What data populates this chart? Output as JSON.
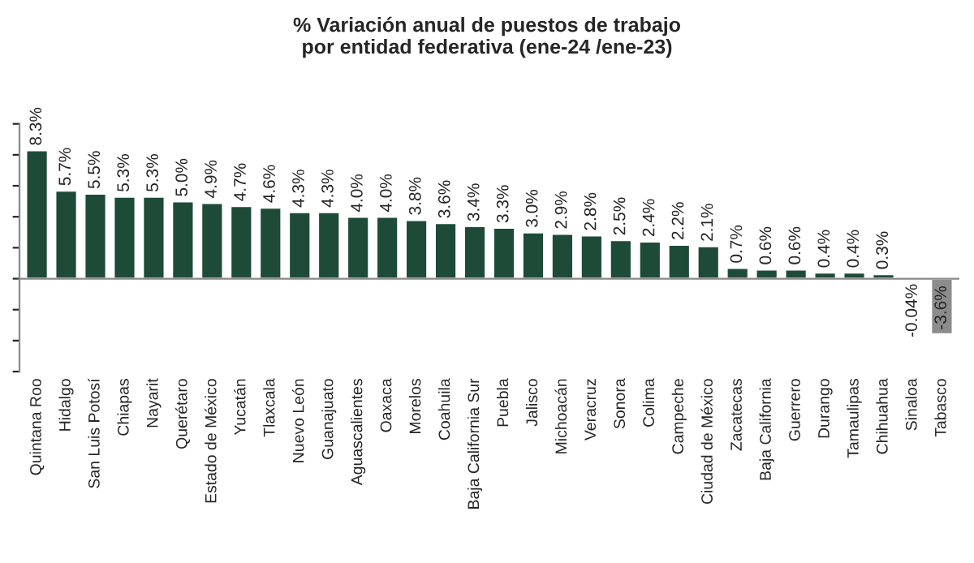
{
  "chart_data": {
    "type": "bar",
    "title": "% Variación anual de puestos de trabajo\npor entidad federativa (ene-24 /ene-23)",
    "categories": [
      "Quintana Roo",
      "Hidalgo",
      "San Luis Potosí",
      "Chiapas",
      "Nayarit",
      "Querétaro",
      "Estado de México",
      "Yucatán",
      "Tlaxcala",
      "Nuevo León",
      "Guanajuato",
      "Aguascalientes",
      "Oaxaca",
      "Morelos",
      "Coahuila",
      "Baja California Sur",
      "Puebla",
      "Jalisco",
      "Michoacán",
      "Veracruz",
      "Sonora",
      "Colima",
      "Campeche",
      "Ciudad de México",
      "Zacatecas",
      "Baja California",
      "Guerrero",
      "Durango",
      "Tamaulipas",
      "Chihuahua",
      "Sinaloa",
      "Tabasco"
    ],
    "values": [
      8.3,
      5.7,
      5.5,
      5.3,
      5.3,
      5.0,
      4.9,
      4.7,
      4.6,
      4.3,
      4.3,
      4.0,
      4.0,
      3.8,
      3.6,
      3.4,
      3.3,
      3.0,
      2.9,
      2.8,
      2.5,
      2.4,
      2.2,
      2.1,
      0.7,
      0.6,
      0.6,
      0.4,
      0.4,
      0.3,
      -0.04,
      -3.6
    ],
    "value_labels": [
      "8.3%",
      "5.7%",
      "5.5%",
      "5.3%",
      "5.3%",
      "5.0%",
      "4.9%",
      "4.7%",
      "4.6%",
      "4.3%",
      "4.3%",
      "4.0%",
      "4.0%",
      "3.8%",
      "3.6%",
      "3.4%",
      "3.3%",
      "3.0%",
      "2.9%",
      "2.8%",
      "2.5%",
      "2.4%",
      "2.2%",
      "2.1%",
      "0.7%",
      "0.6%",
      "0.6%",
      "0.4%",
      "0.4%",
      "0.3%",
      "-0.04%",
      "-3.6%"
    ],
    "colors": [
      "#1e4b38",
      "#1e4b38",
      "#1e4b38",
      "#1e4b38",
      "#1e4b38",
      "#1e4b38",
      "#1e4b38",
      "#1e4b38",
      "#1e4b38",
      "#1e4b38",
      "#1e4b38",
      "#1e4b38",
      "#1e4b38",
      "#1e4b38",
      "#1e4b38",
      "#1e4b38",
      "#1e4b38",
      "#1e4b38",
      "#1e4b38",
      "#1e4b38",
      "#1e4b38",
      "#1e4b38",
      "#1e4b38",
      "#1e4b38",
      "#1e4b38",
      "#1e4b38",
      "#1e4b38",
      "#1e4b38",
      "#1e4b38",
      "#1e4b38",
      "#8c8c8c",
      "#8c8c8c"
    ],
    "ylim": [
      -6,
      10
    ],
    "yticks": [
      {
        "value": -6,
        "label": null
      },
      {
        "value": -4,
        "label": null
      },
      {
        "value": -2,
        "label": null
      },
      {
        "value": 0,
        "label": null
      },
      {
        "value": 2,
        "label": null
      },
      {
        "value": 4,
        "label": null
      },
      {
        "value": 6,
        "label": null
      },
      {
        "value": 8,
        "label": null
      },
      {
        "value": 10,
        "label": null
      }
    ],
    "tick_labels": "x",
    "grid": false,
    "legend": false
  }
}
